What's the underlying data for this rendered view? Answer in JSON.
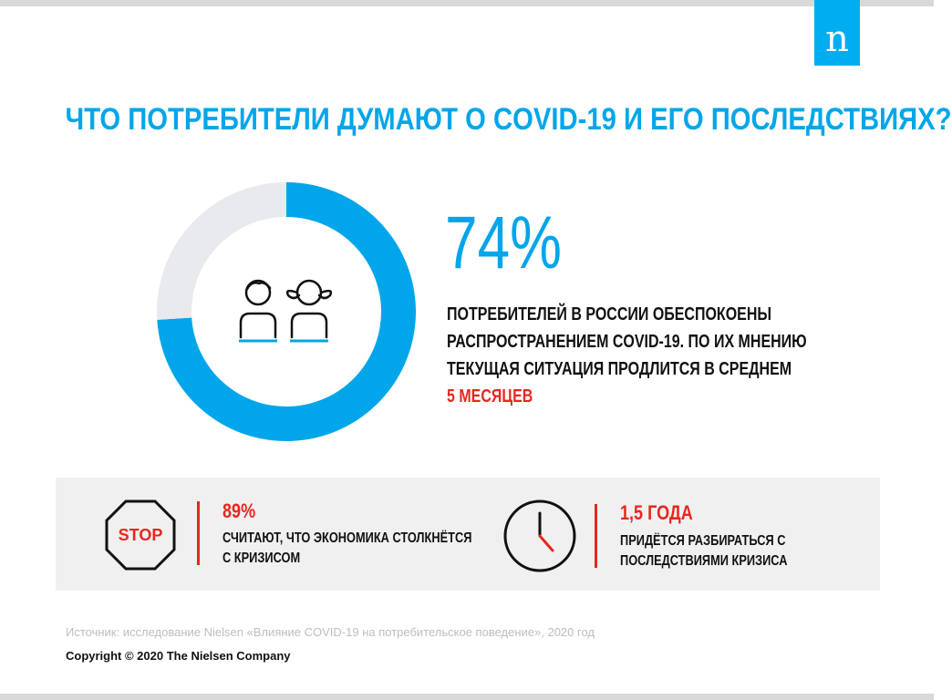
{
  "brand": {
    "logo_letter": "n",
    "accent": "#00a6e9",
    "alert": "#e8271e"
  },
  "title": "ЧТО ПОТРЕБИТЕЛИ ДУМАЮТ О COVID-19 И ЕГО ПОСЛЕДСТВИЯХ?",
  "chart_data": {
    "type": "pie",
    "title": "",
    "slices": [
      {
        "label": "обеспокоены",
        "value": 74,
        "color": "#00a6e9"
      },
      {
        "label": "",
        "value": 26,
        "color": "#e8eaed"
      }
    ]
  },
  "main_stat": {
    "value": "74%",
    "lines": [
      "ПОТРЕБИТЕЛЕЙ В РОССИИ ОБЕСПОКОЕНЫ",
      "РАСПРОСТРАНЕНИЕМ COVID-19. ПО ИХ МНЕНИЮ",
      "ТЕКУЩАЯ СИТУАЦИЯ ПРОДЛИТСЯ В СРЕДНЕМ"
    ],
    "highlight": "5 МЕСЯЦЕВ"
  },
  "stats": [
    {
      "icon": "stop-sign-icon",
      "icon_text": "STOP",
      "value": "89%",
      "lines": [
        "СЧИТАЮТ, ЧТО ЭКОНОМИКА СТОЛКНЁТСЯ",
        "С КРИЗИСОМ"
      ]
    },
    {
      "icon": "clock-icon",
      "value": "1,5 ГОДА",
      "lines": [
        "ПРИДЁТСЯ РАЗБИРАТЬСЯ С",
        "ПОСЛЕДСТВИЯМИ КРИЗИСА"
      ]
    }
  ],
  "source": "Источник: исследование Nielsen «Влияние COVID-19 на потребительское поведение», 2020 год",
  "copyright": "Copyright © 2020 The Nielsen Company"
}
